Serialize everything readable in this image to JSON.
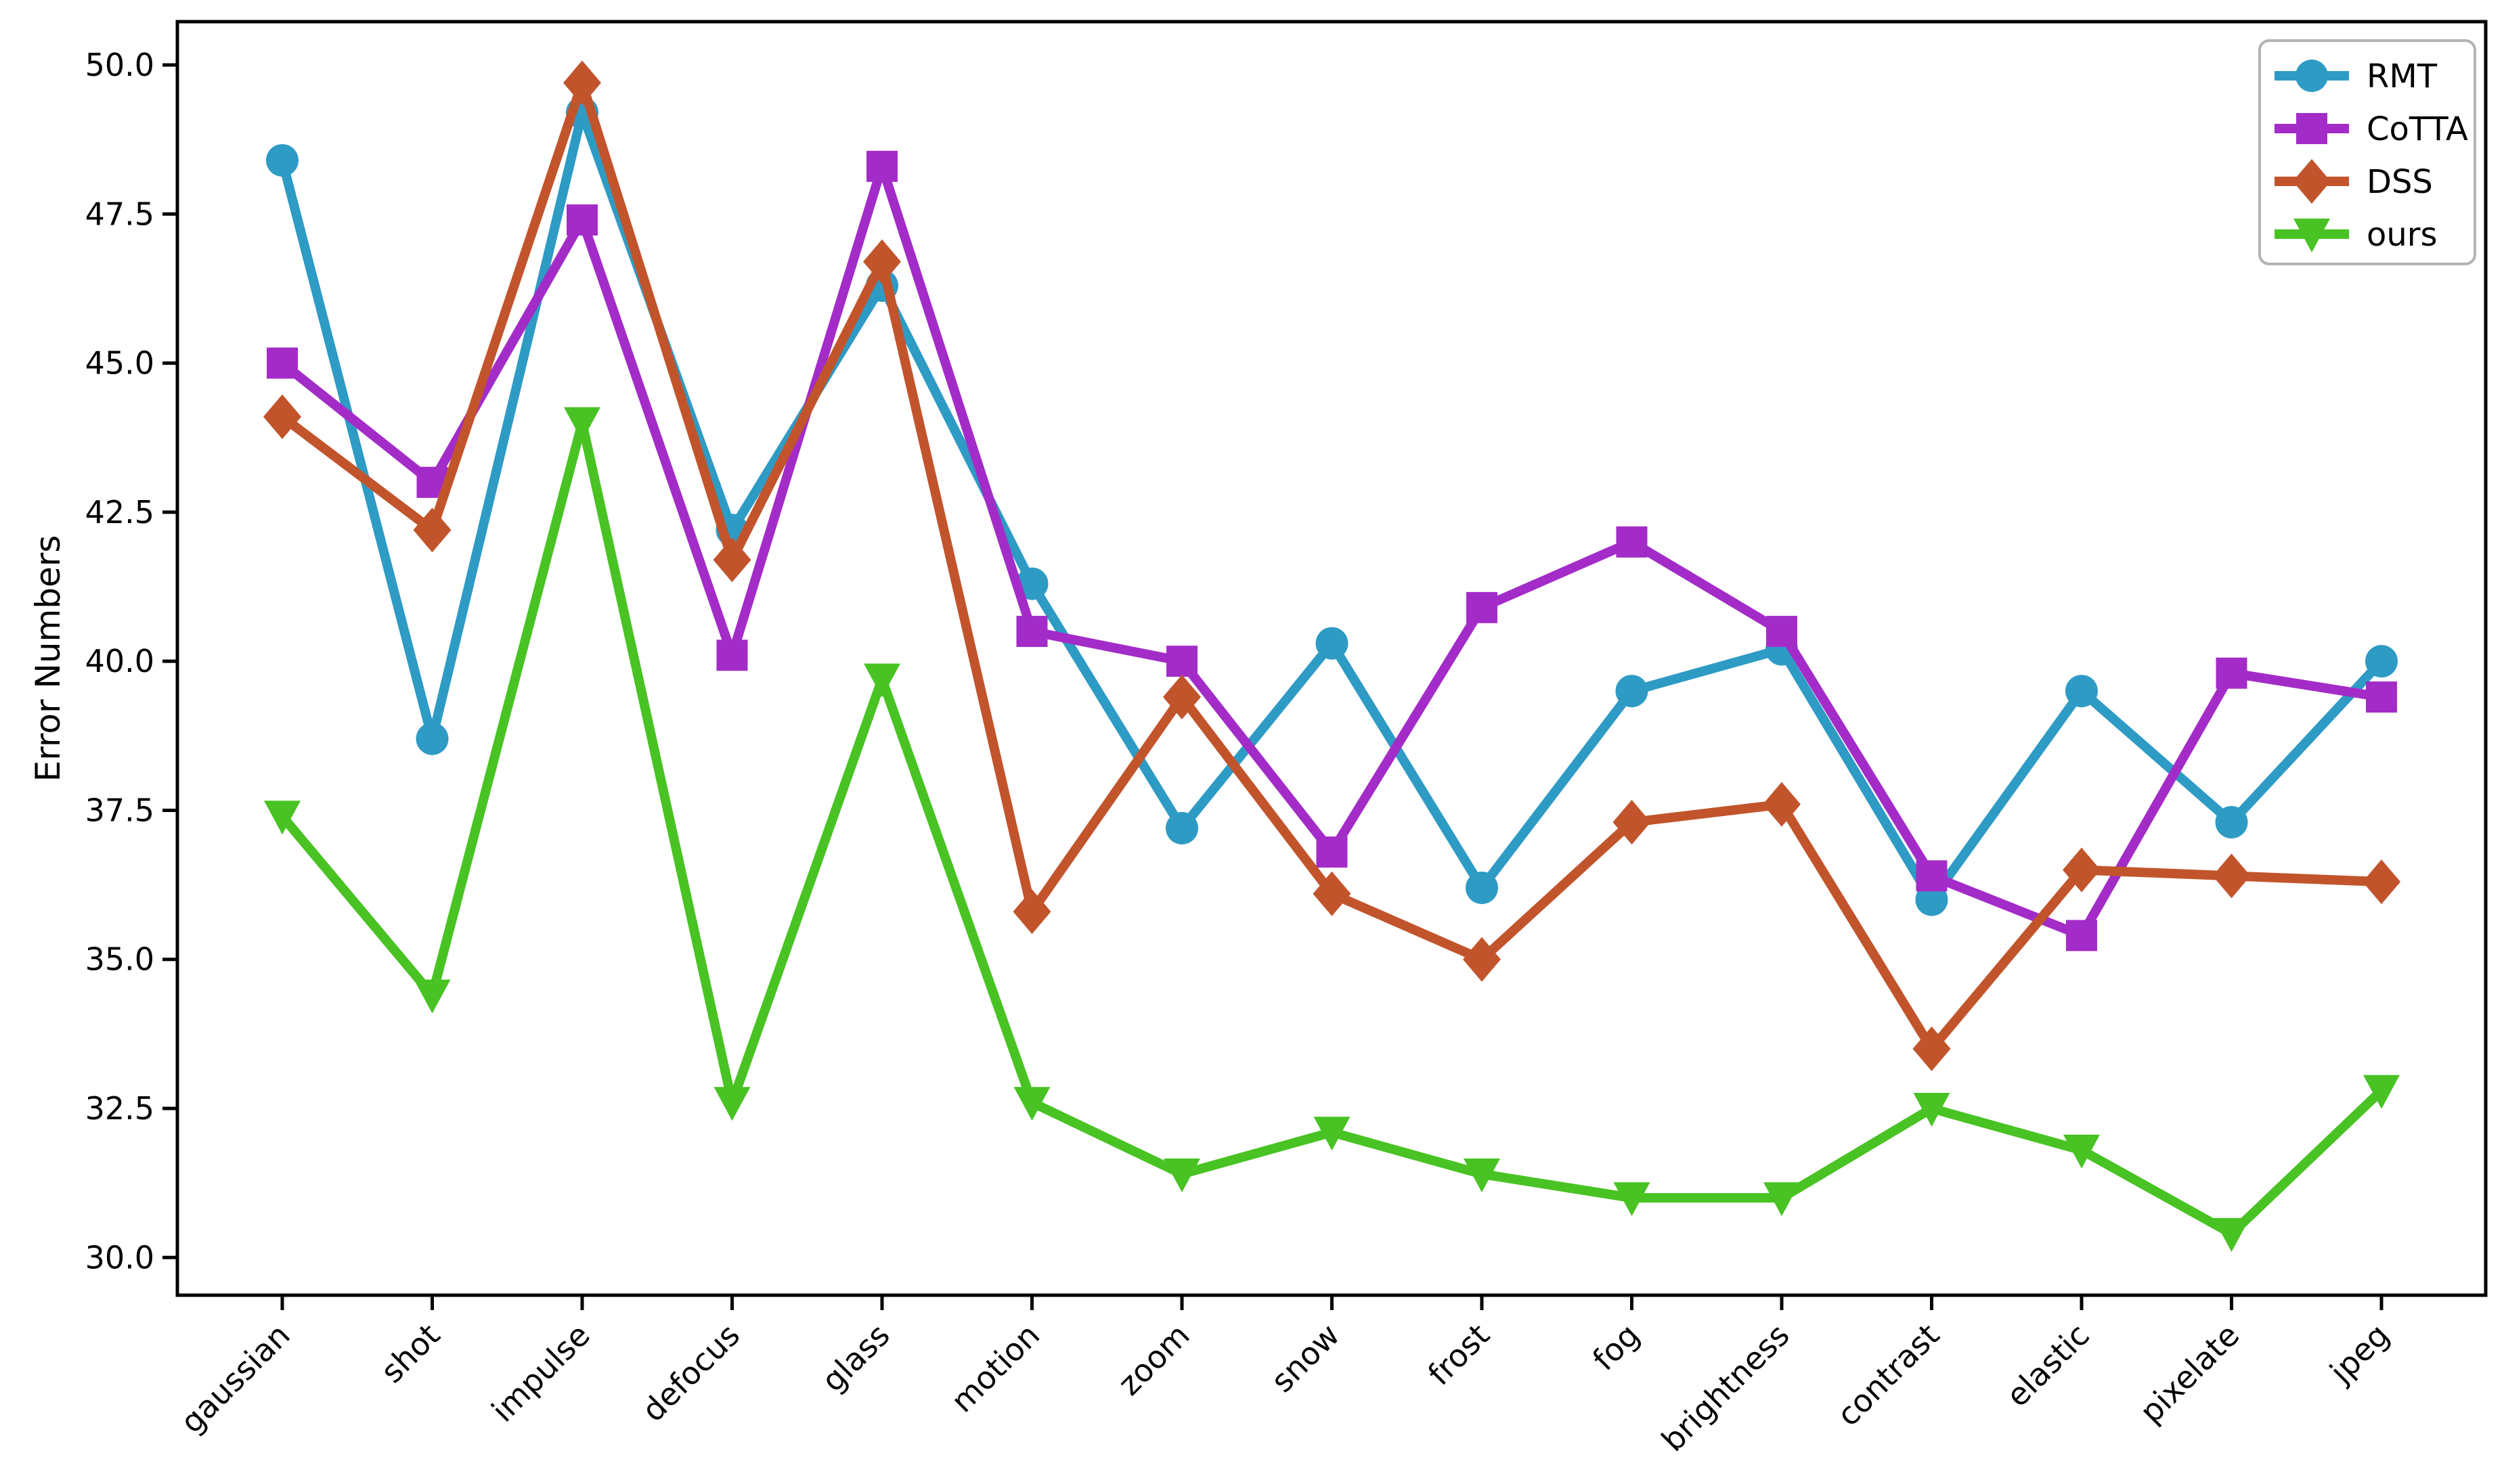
{
  "figure": {
    "background": "#ffffff",
    "border_color": "#000000"
  },
  "chart_data": {
    "type": "line",
    "title": "",
    "xlabel": "",
    "ylabel": "Error Numbers",
    "categories": [
      "gaussian",
      "shot",
      "impulse",
      "defocus",
      "glass",
      "motion",
      "zoom",
      "snow",
      "frost",
      "fog",
      "brightness",
      "contrast",
      "elastic",
      "pixelate",
      "jpeg"
    ],
    "series": [
      {
        "name": "RMT",
        "color": "#2e9bc5",
        "marker": "circle",
        "values": [
          48.4,
          38.7,
          49.2,
          42.2,
          46.3,
          41.3,
          37.2,
          40.3,
          36.2,
          39.5,
          40.2,
          36.0,
          39.5,
          37.3,
          40.0
        ]
      },
      {
        "name": "CoTTA",
        "color": "#a32cc8",
        "marker": "square",
        "values": [
          45.0,
          43.0,
          47.4,
          40.1,
          48.3,
          40.5,
          40.0,
          36.8,
          40.9,
          42.0,
          40.5,
          36.4,
          35.4,
          39.8,
          39.4
        ]
      },
      {
        "name": "DSS",
        "color": "#c2542c",
        "marker": "diamond",
        "values": [
          44.1,
          42.2,
          49.7,
          41.7,
          46.7,
          35.8,
          39.4,
          36.1,
          35.0,
          37.3,
          37.6,
          33.5,
          36.5,
          36.4,
          36.3
        ]
      },
      {
        "name": "ours",
        "color": "#48c323",
        "marker": "triangle-down",
        "values": [
          37.4,
          34.4,
          44.0,
          32.6,
          39.7,
          32.6,
          31.4,
          32.1,
          31.4,
          31.0,
          31.0,
          32.5,
          31.8,
          30.4,
          32.8
        ]
      }
    ],
    "yticks": [
      "30.0",
      "32.5",
      "35.0",
      "37.5",
      "40.0",
      "42.5",
      "45.0",
      "47.5",
      "50.0"
    ],
    "ytick_values": [
      30,
      32.5,
      35,
      37.5,
      40,
      42.5,
      45,
      47.5,
      50
    ],
    "ylim": [
      29.35,
      50.75
    ],
    "grid": false,
    "legend_position": "upper right",
    "legend_labels": [
      "RMT",
      "CoTTA",
      "DSS",
      "ours"
    ]
  }
}
